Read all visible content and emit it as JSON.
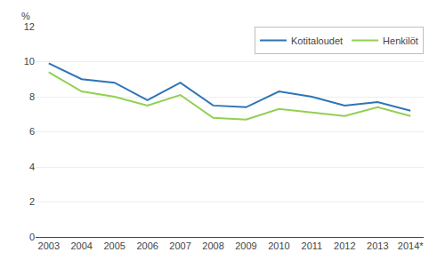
{
  "chart_data": {
    "type": "line",
    "ylabel": "%",
    "categories": [
      "2003",
      "2004",
      "2005",
      "2006",
      "2007",
      "2008",
      "2009",
      "2010",
      "2011",
      "2012",
      "2013",
      "2014*"
    ],
    "series": [
      {
        "name": "Kotitaloudet",
        "color": "#2E74B5",
        "values": [
          9.9,
          9.0,
          8.8,
          7.8,
          8.8,
          7.5,
          7.4,
          8.3,
          8.0,
          7.5,
          7.7,
          7.2
        ]
      },
      {
        "name": "Henkilöt",
        "color": "#92D050",
        "values": [
          9.4,
          8.3,
          8.0,
          7.5,
          8.1,
          6.8,
          6.7,
          7.3,
          7.1,
          6.9,
          7.4,
          6.9
        ]
      }
    ],
    "ylim": [
      0,
      12
    ],
    "yticks": [
      0,
      2,
      4,
      6,
      8,
      10,
      12
    ],
    "grid": true,
    "legend": "upper right"
  }
}
